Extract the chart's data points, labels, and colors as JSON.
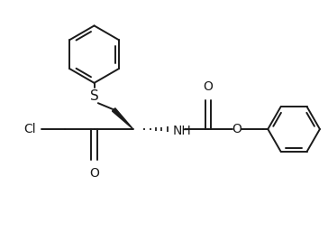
{
  "background_color": "#ffffff",
  "line_color": "#1a1a1a",
  "line_width": 1.4,
  "fig_width": 3.64,
  "fig_height": 2.68,
  "dpi": 100,
  "xlim": [
    0,
    10
  ],
  "ylim": [
    0,
    7.4
  ]
}
